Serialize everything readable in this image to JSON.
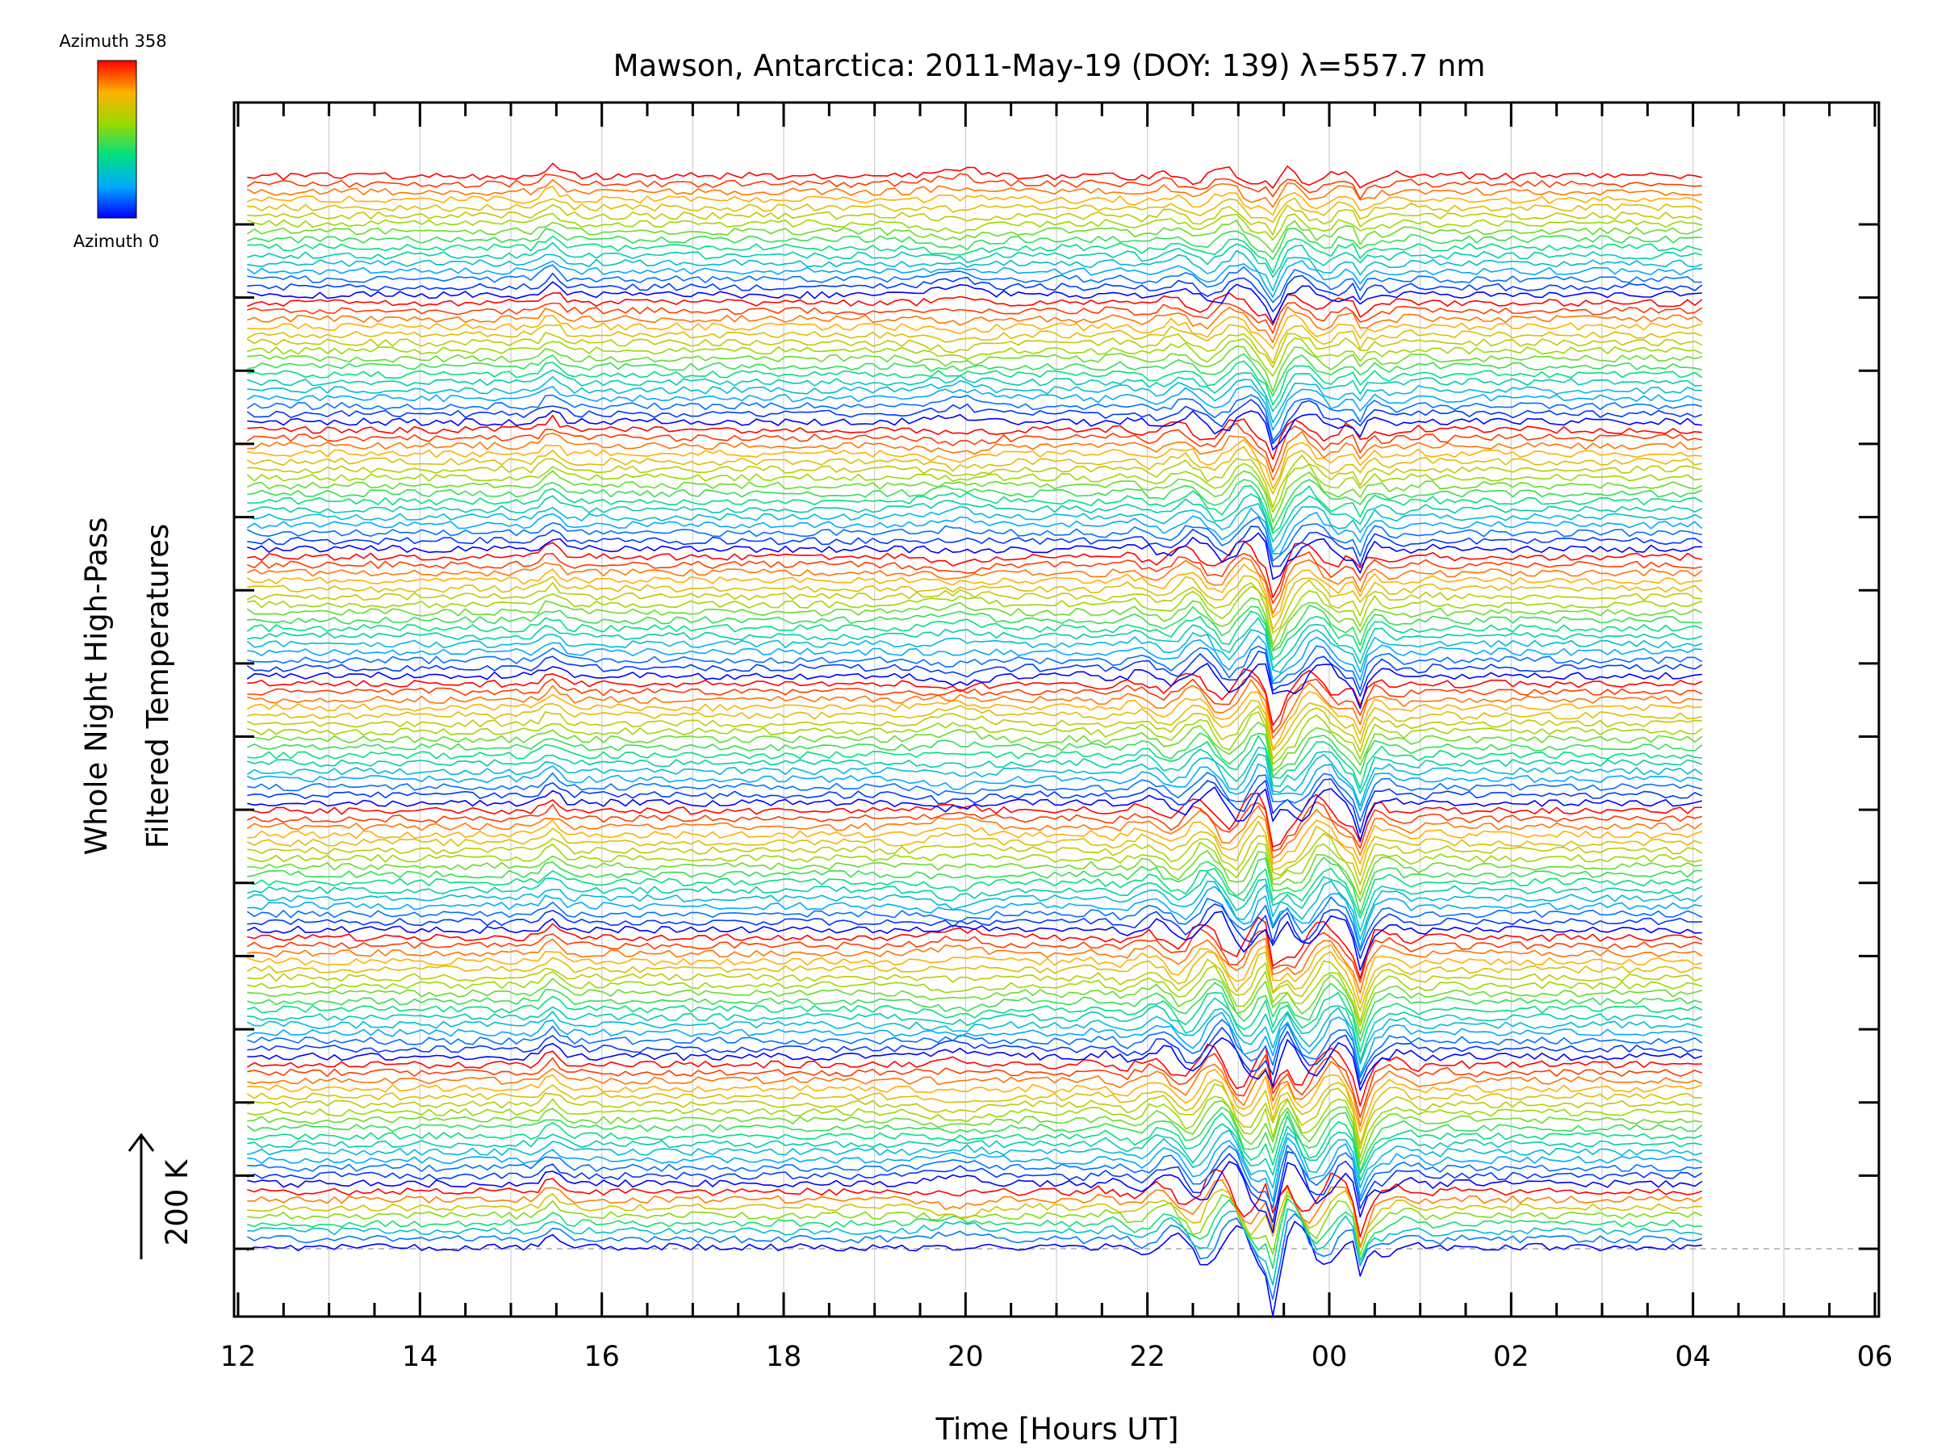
{
  "chart_data": {
    "type": "line",
    "title": "Mawson, Antarctica: 2011-May-19 (DOY: 139) λ=557.7 nm",
    "xlabel": "Time [Hours UT]",
    "ylabel_lines": [
      "Whole Night High-Pass",
      "Filtered Temperatures"
    ],
    "scale_label": "200 K",
    "x_ticks": [
      "12",
      "14",
      "16",
      "18",
      "20",
      "22",
      "00",
      "02",
      "04",
      "06"
    ],
    "xlim_hours": [
      12,
      30
    ],
    "data_end_hour": 28.1,
    "legend": {
      "top_label": "Azimuth 358",
      "bottom_label": "Azimuth 0",
      "colormap": "rainbow (blue = azimuth 0, red = azimuth 358)"
    },
    "y_axis_ticks_count": 15,
    "grid": "vertical dotted lines every hour",
    "trace_groups": [
      {
        "name": "ring-1",
        "traces": 8
      },
      {
        "name": "ring-2",
        "traces": 16
      },
      {
        "name": "ring-3",
        "traces": 16
      },
      {
        "name": "ring-4",
        "traces": 16
      },
      {
        "name": "ring-5",
        "traces": 16
      },
      {
        "name": "ring-6",
        "traces": 16
      },
      {
        "name": "ring-7",
        "traces": 16
      },
      {
        "name": "ring-8",
        "traces": 16
      },
      {
        "name": "ring-9",
        "traces": 16
      }
    ],
    "note_traces": "offset stacked temperature traces, one per azimuth, ordered bottom to top by zenith ring"
  }
}
